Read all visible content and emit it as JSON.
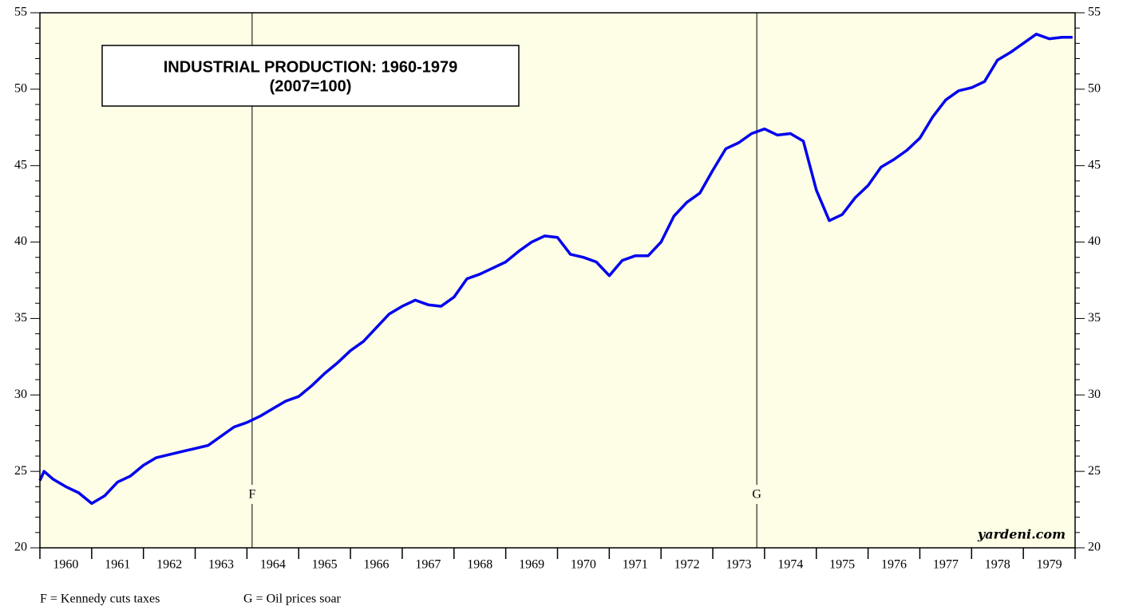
{
  "chart_data": {
    "type": "line",
    "title": "INDUSTRIAL PRODUCTION: 1960-1979",
    "subtitle": "(2007=100)",
    "credit": "yardeni.com",
    "categories": [
      "1960",
      "1961",
      "1962",
      "1963",
      "1964",
      "1965",
      "1966",
      "1967",
      "1968",
      "1969",
      "1970",
      "1971",
      "1972",
      "1973",
      "1974",
      "1975",
      "1976",
      "1977",
      "1978",
      "1979"
    ],
    "xlim": [
      1960,
      1980
    ],
    "ylim": [
      20,
      55
    ],
    "yticks": [
      20,
      25,
      30,
      35,
      40,
      45,
      50,
      55
    ],
    "series": [
      {
        "name": "Industrial Production",
        "color": "#0000ee",
        "x": [
          1960.0,
          1960.08,
          1960.25,
          1960.5,
          1960.75,
          1961.0,
          1961.25,
          1961.5,
          1961.75,
          1962.0,
          1962.25,
          1962.5,
          1962.75,
          1963.0,
          1963.25,
          1963.5,
          1963.75,
          1964.0,
          1964.25,
          1964.5,
          1964.75,
          1965.0,
          1965.25,
          1965.5,
          1965.75,
          1966.0,
          1966.25,
          1966.5,
          1966.75,
          1967.0,
          1967.25,
          1967.5,
          1967.75,
          1968.0,
          1968.25,
          1968.5,
          1968.75,
          1969.0,
          1969.25,
          1969.5,
          1969.75,
          1970.0,
          1970.25,
          1970.5,
          1970.75,
          1971.0,
          1971.25,
          1971.5,
          1971.75,
          1972.0,
          1972.25,
          1972.5,
          1972.75,
          1973.0,
          1973.25,
          1973.5,
          1973.75,
          1974.0,
          1974.25,
          1974.5,
          1974.75,
          1975.0,
          1975.25,
          1975.5,
          1975.75,
          1976.0,
          1976.25,
          1976.5,
          1976.75,
          1977.0,
          1977.25,
          1977.5,
          1977.75,
          1978.0,
          1978.25,
          1978.5,
          1978.75,
          1979.0,
          1979.25,
          1979.5,
          1979.75,
          1979.95
        ],
        "values": [
          24.4,
          25.0,
          24.5,
          24.0,
          23.6,
          22.9,
          23.4,
          24.3,
          24.7,
          25.4,
          25.9,
          26.1,
          26.3,
          26.5,
          26.7,
          27.3,
          27.9,
          28.2,
          28.6,
          29.1,
          29.6,
          29.9,
          30.6,
          31.4,
          32.1,
          32.9,
          33.5,
          34.4,
          35.3,
          35.8,
          36.2,
          35.9,
          35.8,
          36.4,
          37.6,
          37.9,
          38.3,
          38.7,
          39.4,
          40.0,
          40.4,
          40.3,
          39.2,
          39.0,
          38.7,
          37.8,
          38.8,
          39.1,
          39.1,
          40.0,
          41.7,
          42.6,
          43.2,
          44.7,
          46.1,
          46.5,
          47.1,
          47.4,
          47.0,
          47.1,
          46.6,
          43.4,
          41.4,
          41.8,
          42.9,
          43.7,
          44.9,
          45.4,
          46.0,
          46.8,
          48.2,
          49.3,
          49.9,
          50.1,
          50.5,
          51.9,
          52.4,
          53.0,
          53.6,
          53.3,
          53.4,
          53.4
        ]
      }
    ],
    "annotations": [
      {
        "label": "F",
        "x": 1964.1
      },
      {
        "label": "G",
        "x": 1973.85
      }
    ],
    "footnotes": [
      "F = Kennedy cuts taxes",
      "G = Oil prices soar"
    ]
  }
}
